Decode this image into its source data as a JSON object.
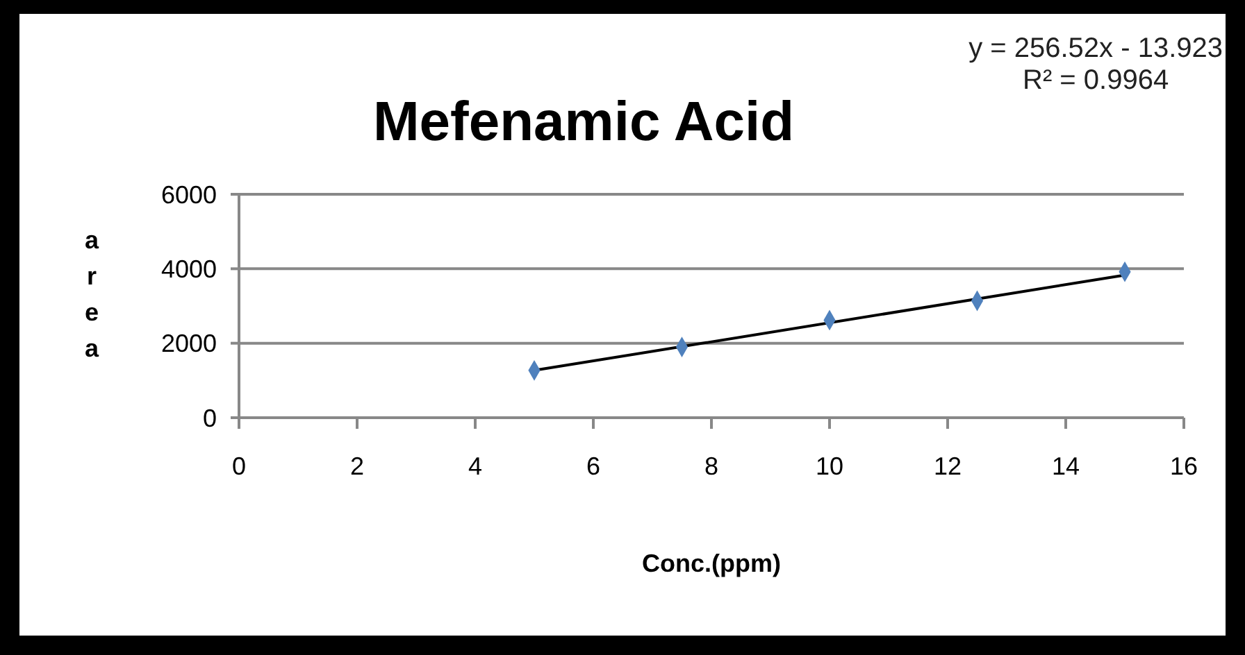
{
  "chart_data": {
    "type": "scatter",
    "title": "Mefenamic Acid",
    "xlabel": "Conc.(ppm)",
    "ylabel": "area",
    "annotations": [
      "y = 256.52x - 13.923",
      "R² = 0.9964"
    ],
    "x": [
      5,
      7.5,
      10,
      12.5,
      15
    ],
    "series": [
      {
        "color": "#4f81bd",
        "values": [
          1270,
          1900,
          2620,
          3140,
          3920
        ],
        "marker": "diamond"
      },
      {
        "type": "line",
        "color": "#000000",
        "x": [
          5,
          15
        ],
        "values": [
          1270,
          3830
        ],
        "marker": "none"
      }
    ],
    "xlim": [
      0,
      16
    ],
    "xticks": [
      0,
      2,
      4,
      6,
      8,
      10,
      12,
      14,
      16
    ],
    "ylim": [
      0,
      6000
    ],
    "yticks": [
      0,
      2000,
      4000,
      6000
    ],
    "grid": "y"
  }
}
